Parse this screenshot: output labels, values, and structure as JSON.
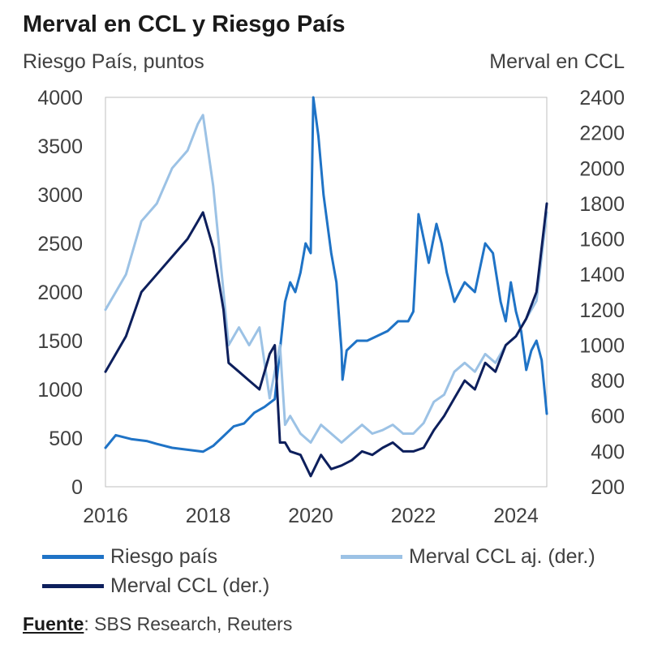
{
  "chart_data": {
    "type": "line",
    "title": "Merval en CCL y Riesgo País",
    "ylabel_left": "Riesgo País, puntos",
    "ylabel_right": "Merval en CCL",
    "xlim": [
      2016,
      2024.6
    ],
    "ylim_left": [
      0,
      4000
    ],
    "ylim_right": [
      200,
      2400
    ],
    "x_ticks": [
      "2016",
      "2018",
      "2020",
      "2022",
      "2024"
    ],
    "y_ticks_left": [
      "4000",
      "3500",
      "3000",
      "2500",
      "2000",
      "1500",
      "1000",
      "500",
      "0"
    ],
    "y_ticks_right": [
      "2400",
      "2200",
      "2000",
      "1800",
      "1600",
      "1400",
      "1200",
      "1000",
      "800",
      "600",
      "400",
      "200"
    ],
    "grid": false,
    "legend_position": "bottom",
    "series": [
      {
        "name": "Riesgo país",
        "axis": "left",
        "color": "#1f73c6",
        "x": [
          2016.0,
          2016.2,
          2016.5,
          2016.8,
          2017.0,
          2017.3,
          2017.6,
          2017.9,
          2018.1,
          2018.3,
          2018.5,
          2018.7,
          2018.9,
          2019.1,
          2019.3,
          2019.5,
          2019.6,
          2019.7,
          2019.8,
          2019.9,
          2020.0,
          2020.05,
          2020.15,
          2020.25,
          2020.4,
          2020.5,
          2020.6,
          2020.62,
          2020.7,
          2020.9,
          2021.1,
          2021.3,
          2021.5,
          2021.7,
          2021.9,
          2022.0,
          2022.1,
          2022.3,
          2022.45,
          2022.55,
          2022.65,
          2022.8,
          2023.0,
          2023.2,
          2023.4,
          2023.55,
          2023.7,
          2023.8,
          2023.9,
          2024.0,
          2024.1,
          2024.2,
          2024.3,
          2024.4,
          2024.5,
          2024.6
        ],
        "values": [
          400,
          530,
          490,
          470,
          440,
          400,
          380,
          360,
          420,
          520,
          620,
          650,
          760,
          820,
          900,
          1900,
          2100,
          2000,
          2200,
          2500,
          2400,
          4000,
          3600,
          3000,
          2400,
          2100,
          1400,
          1100,
          1400,
          1500,
          1500,
          1550,
          1600,
          1700,
          1700,
          1800,
          2800,
          2300,
          2700,
          2500,
          2200,
          1900,
          2100,
          2000,
          2500,
          2400,
          1900,
          1700,
          2100,
          1800,
          1600,
          1200,
          1400,
          1500,
          1300,
          750
        ]
      },
      {
        "name": "Merval CCL aj. (der.)",
        "axis": "right",
        "color": "#9cc2e5",
        "x": [
          2016.0,
          2016.2,
          2016.4,
          2016.7,
          2017.0,
          2017.3,
          2017.6,
          2017.8,
          2017.9,
          2018.1,
          2018.3,
          2018.4,
          2018.6,
          2018.8,
          2019.0,
          2019.2,
          2019.3,
          2019.4,
          2019.5,
          2019.6,
          2019.8,
          2020.0,
          2020.2,
          2020.4,
          2020.6,
          2020.8,
          2021.0,
          2021.2,
          2021.4,
          2021.6,
          2021.8,
          2022.0,
          2022.2,
          2022.4,
          2022.6,
          2022.8,
          2023.0,
          2023.2,
          2023.4,
          2023.6,
          2023.8,
          2024.0,
          2024.2,
          2024.4,
          2024.6
        ],
        "values": [
          1200,
          1300,
          1400,
          1700,
          1800,
          2000,
          2100,
          2250,
          2300,
          1900,
          1300,
          1000,
          1100,
          1000,
          1100,
          700,
          850,
          1000,
          550,
          600,
          500,
          450,
          550,
          500,
          450,
          500,
          550,
          500,
          520,
          550,
          500,
          500,
          560,
          680,
          720,
          850,
          900,
          850,
          950,
          900,
          1000,
          1050,
          1150,
          1250,
          1750
        ]
      },
      {
        "name": "Merval CCL (der.)",
        "axis": "right",
        "color": "#0d1f5c",
        "x": [
          2016.0,
          2016.2,
          2016.4,
          2016.7,
          2017.0,
          2017.3,
          2017.6,
          2017.8,
          2017.9,
          2018.1,
          2018.3,
          2018.4,
          2018.6,
          2018.8,
          2019.0,
          2019.2,
          2019.3,
          2019.4,
          2019.5,
          2019.6,
          2019.8,
          2020.0,
          2020.2,
          2020.4,
          2020.6,
          2020.8,
          2021.0,
          2021.2,
          2021.4,
          2021.6,
          2021.8,
          2022.0,
          2022.2,
          2022.4,
          2022.6,
          2022.8,
          2023.0,
          2023.2,
          2023.4,
          2023.6,
          2023.8,
          2024.0,
          2024.2,
          2024.4,
          2024.6
        ],
        "values": [
          850,
          950,
          1050,
          1300,
          1400,
          1500,
          1600,
          1700,
          1750,
          1550,
          1200,
          900,
          850,
          800,
          750,
          950,
          1000,
          450,
          450,
          400,
          380,
          260,
          380,
          300,
          320,
          350,
          400,
          380,
          420,
          450,
          400,
          400,
          420,
          520,
          600,
          700,
          800,
          750,
          900,
          850,
          1000,
          1050,
          1150,
          1300,
          1800
        ]
      }
    ]
  },
  "legend": [
    {
      "label": "Riesgo país",
      "color": "#1f73c6"
    },
    {
      "label": "Merval CCL aj. (der.)",
      "color": "#9cc2e5"
    },
    {
      "label": "Merval CCL (der.)",
      "color": "#0d1f5c"
    }
  ],
  "source": {
    "key": "Fuente",
    "value": ": SBS Research, Reuters"
  }
}
